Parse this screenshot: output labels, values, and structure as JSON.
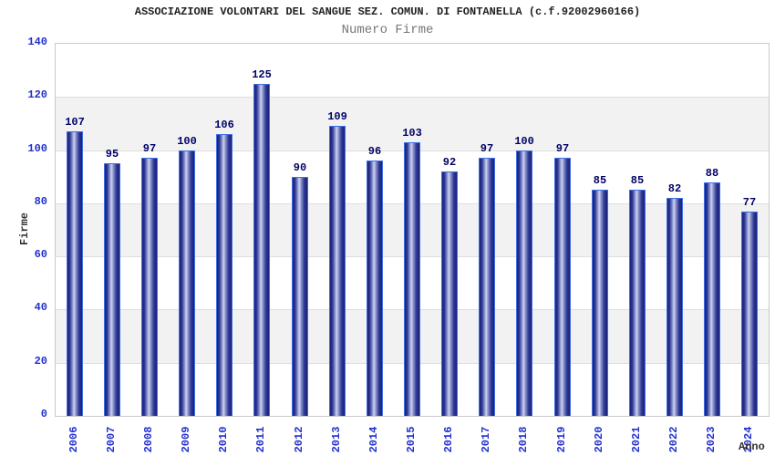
{
  "header": {
    "title": "ASSOCIAZIONE VOLONTARI DEL SANGUE SEZ. COMUN. DI FONTANELLA (c.f.92002960166)",
    "subtitle": "Numero Firme"
  },
  "chart_data": {
    "type": "bar",
    "title": "ASSOCIAZIONE VOLONTARI DEL SANGUE SEZ. COMUN. DI FONTANELLA (c.f.92002960166)",
    "subtitle": "Numero Firme",
    "xlabel": "Anno",
    "ylabel": "Firme",
    "categories": [
      "2006",
      "2007",
      "2008",
      "2009",
      "2010",
      "2011",
      "2012",
      "2013",
      "2014",
      "2015",
      "2016",
      "2017",
      "2018",
      "2019",
      "2020",
      "2021",
      "2022",
      "2023",
      "2024"
    ],
    "values": [
      107,
      95,
      97,
      100,
      106,
      125,
      90,
      109,
      96,
      103,
      92,
      97,
      100,
      97,
      85,
      85,
      82,
      88,
      77
    ],
    "ylim": [
      0,
      140
    ],
    "ytick_step": 20,
    "yticks": [
      0,
      20,
      40,
      60,
      80,
      100,
      120,
      140
    ],
    "grid": true,
    "legend_position": "none",
    "band_ranges": [
      [
        20,
        40
      ],
      [
        60,
        80
      ],
      [
        100,
        120
      ]
    ],
    "colors": {
      "bar_dark": "#1b2176",
      "bar_light": "#cdd3ee",
      "bar_border": "#3d6fe6",
      "value_label": "#000066",
      "tick_label": "#2230cc",
      "title": "#222222",
      "subtitle": "#777777",
      "axis_title": "#333333",
      "band": "#f2f2f2",
      "gridline": "#dedede",
      "plot_border": "#c9c9c9",
      "background": "#ffffff"
    }
  }
}
